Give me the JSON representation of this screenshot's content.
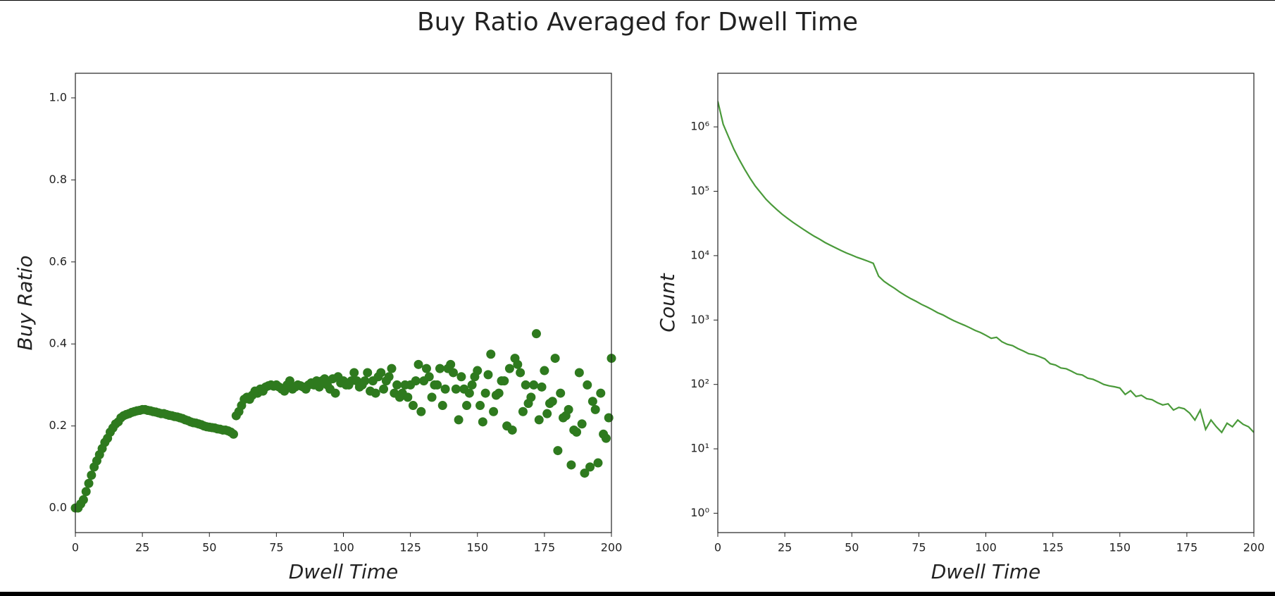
{
  "title": "Buy Ratio Averaged for Dwell Time",
  "chart_data": [
    {
      "type": "scatter",
      "xlabel": "Dwell Time",
      "ylabel": "Buy Ratio",
      "color": "#2e7a1e",
      "xlim": [
        0,
        200
      ],
      "ylim": [
        -0.06,
        1.06
      ],
      "xticks": [
        0,
        25,
        50,
        75,
        100,
        125,
        150,
        175,
        200
      ],
      "yticks": [
        {
          "value": 0,
          "label": "0.0"
        },
        0.2,
        0.4,
        0.6,
        0.8,
        {
          "value": 1,
          "label": "1.0"
        }
      ],
      "x": [
        0,
        1,
        2,
        3,
        4,
        5,
        6,
        7,
        8,
        9,
        10,
        11,
        12,
        13,
        14,
        15,
        16,
        17,
        18,
        19,
        20,
        21,
        22,
        23,
        24,
        25,
        26,
        27,
        28,
        29,
        30,
        31,
        32,
        33,
        34,
        35,
        36,
        37,
        38,
        39,
        40,
        41,
        42,
        43,
        44,
        45,
        46,
        47,
        48,
        49,
        50,
        51,
        52,
        53,
        54,
        55,
        56,
        57,
        58,
        59,
        60,
        61,
        62,
        63,
        64,
        65,
        66,
        67,
        68,
        69,
        70,
        71,
        72,
        73,
        74,
        75,
        76,
        77,
        78,
        79,
        80,
        81,
        82,
        83,
        84,
        85,
        86,
        87,
        88,
        89,
        90,
        91,
        92,
        93,
        94,
        95,
        96,
        97,
        98,
        99,
        100,
        101,
        102,
        103,
        104,
        105,
        106,
        107,
        108,
        109,
        110,
        111,
        112,
        113,
        114,
        115,
        116,
        117,
        118,
        119,
        120,
        121,
        122,
        123,
        124,
        125,
        126,
        127,
        128,
        129,
        130,
        131,
        132,
        133,
        134,
        135,
        136,
        137,
        138,
        139,
        140,
        141,
        142,
        143,
        144,
        145,
        146,
        147,
        148,
        149,
        150,
        151,
        152,
        153,
        154,
        155,
        156,
        157,
        158,
        159,
        160,
        161,
        162,
        163,
        164,
        165,
        166,
        167,
        168,
        169,
        170,
        171,
        172,
        173,
        174,
        175,
        176,
        177,
        178,
        179,
        180,
        181,
        182,
        183,
        184,
        185,
        186,
        187,
        188,
        189,
        190,
        191,
        192,
        193,
        194,
        195,
        196,
        197,
        198,
        199,
        200
      ],
      "values": [
        0.0,
        0.0,
        0.01,
        0.02,
        0.04,
        0.06,
        0.08,
        0.1,
        0.115,
        0.13,
        0.145,
        0.16,
        0.17,
        0.185,
        0.195,
        0.205,
        0.21,
        0.22,
        0.225,
        0.228,
        0.23,
        0.233,
        0.235,
        0.237,
        0.238,
        0.24,
        0.24,
        0.238,
        0.237,
        0.235,
        0.234,
        0.232,
        0.23,
        0.23,
        0.228,
        0.226,
        0.225,
        0.223,
        0.222,
        0.22,
        0.218,
        0.215,
        0.213,
        0.21,
        0.208,
        0.207,
        0.205,
        0.203,
        0.2,
        0.198,
        0.197,
        0.196,
        0.195,
        0.193,
        0.192,
        0.19,
        0.19,
        0.188,
        0.185,
        0.18,
        0.225,
        0.235,
        0.25,
        0.265,
        0.27,
        0.265,
        0.275,
        0.285,
        0.28,
        0.29,
        0.285,
        0.295,
        0.298,
        0.3,
        0.297,
        0.3,
        0.295,
        0.29,
        0.285,
        0.3,
        0.31,
        0.29,
        0.295,
        0.3,
        0.298,
        0.295,
        0.29,
        0.3,
        0.305,
        0.3,
        0.31,
        0.295,
        0.31,
        0.315,
        0.3,
        0.29,
        0.315,
        0.28,
        0.32,
        0.305,
        0.31,
        0.3,
        0.3,
        0.31,
        0.33,
        0.31,
        0.295,
        0.3,
        0.31,
        0.33,
        0.285,
        0.31,
        0.28,
        0.32,
        0.33,
        0.29,
        0.31,
        0.32,
        0.34,
        0.28,
        0.3,
        0.27,
        0.28,
        0.3,
        0.27,
        0.3,
        0.25,
        0.31,
        0.35,
        0.235,
        0.31,
        0.34,
        0.32,
        0.27,
        0.3,
        0.3,
        0.34,
        0.25,
        0.29,
        0.34,
        0.35,
        0.33,
        0.29,
        0.215,
        0.32,
        0.29,
        0.25,
        0.28,
        0.3,
        0.32,
        0.335,
        0.25,
        0.21,
        0.28,
        0.325,
        0.375,
        0.235,
        0.275,
        0.28,
        0.31,
        0.31,
        0.2,
        0.34,
        0.19,
        0.365,
        0.35,
        0.33,
        0.235,
        0.3,
        0.255,
        0.27,
        0.3,
        0.425,
        0.215,
        0.295,
        0.335,
        0.23,
        0.255,
        0.26,
        0.365,
        0.14,
        0.28,
        0.22,
        0.225,
        0.24,
        0.105,
        0.19,
        0.185,
        0.33,
        0.205,
        0.085,
        0.3,
        0.1,
        0.26,
        0.24,
        0.11,
        0.28,
        0.18,
        0.17,
        0.22,
        0.365
      ]
    },
    {
      "type": "line",
      "xlabel": "Dwell Time",
      "ylabel": "Count",
      "color": "#4a9a3a",
      "log_scale_y": true,
      "xlim": [
        0,
        200
      ],
      "ylim": [
        0.5,
        6800000
      ],
      "xticks": [
        0,
        25,
        50,
        75,
        100,
        125,
        150,
        175,
        200
      ],
      "yticks": [
        {
          "value": 1,
          "label": "10⁰"
        },
        {
          "value": 10,
          "label": "10¹"
        },
        {
          "value": 100,
          "label": "10²"
        },
        {
          "value": 1000,
          "label": "10³"
        },
        {
          "value": 10000,
          "label": "10⁴"
        },
        {
          "value": 100000,
          "label": "10⁵"
        },
        {
          "value": 1000000,
          "label": "10⁶"
        }
      ],
      "x": [
        0,
        2,
        4,
        6,
        8,
        10,
        12,
        14,
        16,
        18,
        20,
        22,
        24,
        26,
        28,
        30,
        32,
        34,
        36,
        38,
        40,
        42,
        44,
        46,
        48,
        50,
        52,
        54,
        56,
        58,
        60,
        62,
        64,
        66,
        68,
        70,
        72,
        74,
        76,
        78,
        80,
        82,
        84,
        86,
        88,
        90,
        92,
        94,
        96,
        98,
        100,
        102,
        104,
        106,
        108,
        110,
        112,
        114,
        116,
        118,
        120,
        122,
        124,
        126,
        128,
        130,
        132,
        134,
        136,
        138,
        140,
        142,
        144,
        146,
        148,
        150,
        152,
        154,
        156,
        158,
        160,
        162,
        164,
        166,
        168,
        170,
        172,
        174,
        176,
        178,
        180,
        182,
        184,
        186,
        188,
        190,
        192,
        194,
        196,
        198,
        200
      ],
      "values": [
        2500000,
        1100000,
        700000,
        450000,
        310000,
        220000,
        160000,
        120000,
        95000,
        75000,
        62000,
        52000,
        44000,
        38000,
        33000,
        29000,
        25500,
        22500,
        20000,
        18000,
        16000,
        14500,
        13200,
        12000,
        11000,
        10200,
        9400,
        8800,
        8200,
        7600,
        4800,
        4000,
        3500,
        3100,
        2700,
        2400,
        2150,
        1950,
        1750,
        1600,
        1450,
        1300,
        1200,
        1080,
        980,
        900,
        830,
        760,
        690,
        640,
        580,
        520,
        540,
        460,
        420,
        400,
        360,
        330,
        300,
        290,
        270,
        250,
        210,
        200,
        180,
        175,
        160,
        145,
        140,
        125,
        120,
        110,
        100,
        95,
        92,
        88,
        70,
        80,
        65,
        68,
        60,
        58,
        52,
        48,
        50,
        40,
        44,
        42,
        36,
        28,
        40,
        20,
        28,
        22,
        18,
        25,
        22,
        28,
        24,
        22,
        18
      ]
    }
  ]
}
